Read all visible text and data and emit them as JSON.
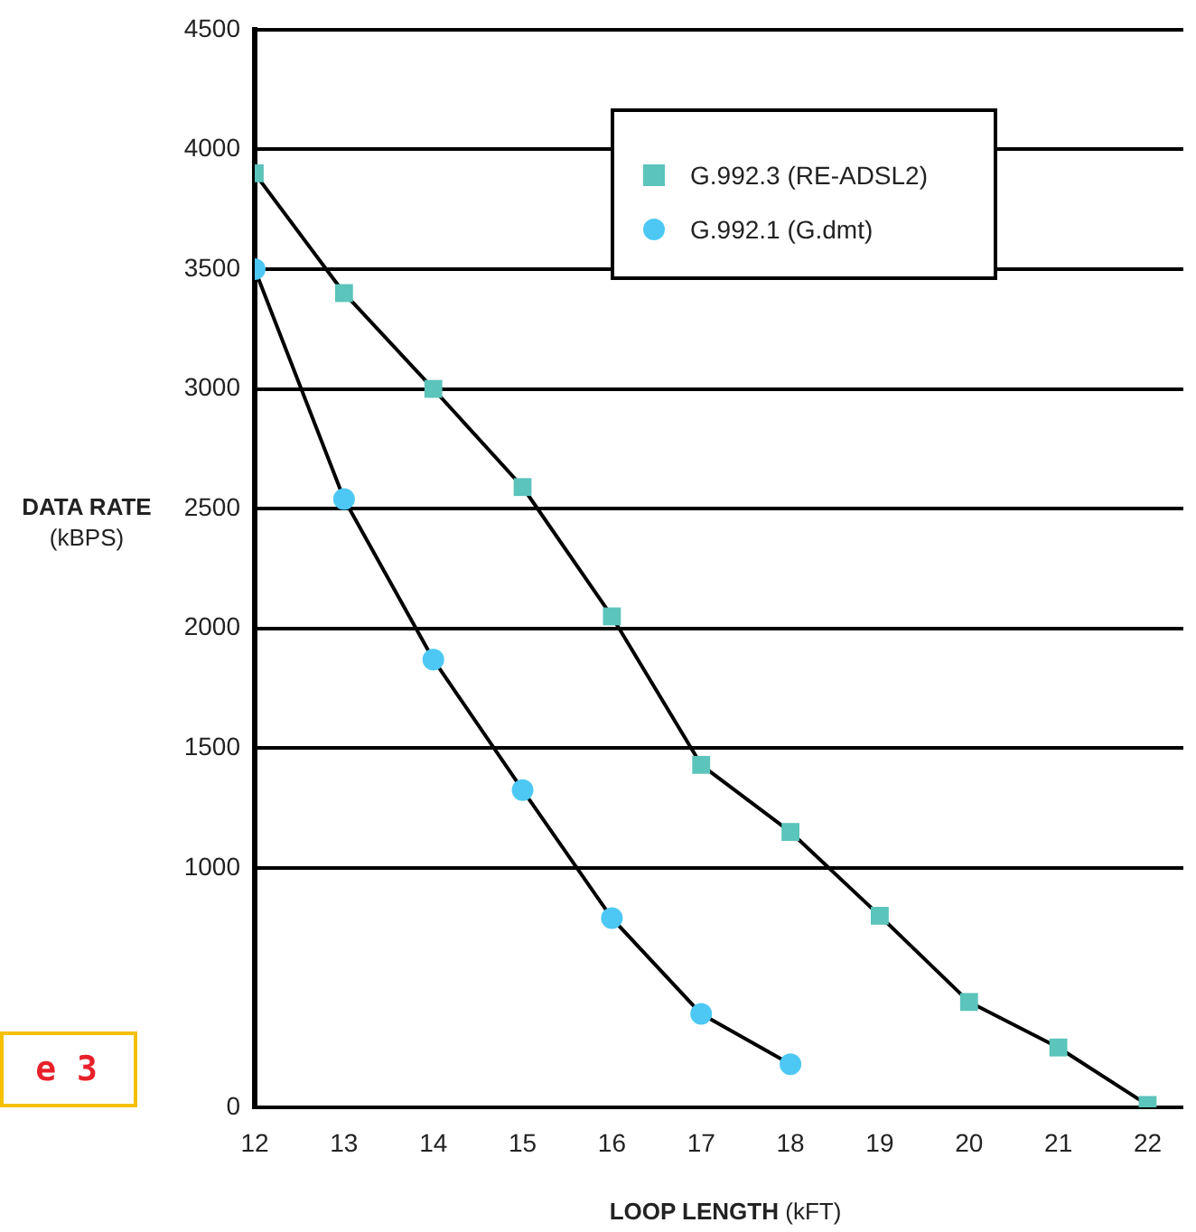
{
  "chart_data": {
    "type": "line",
    "xlabel": "LOOP LENGTH (kFT)",
    "ylabel": "DATA RATE (kBPS)",
    "x": [
      12,
      13,
      14,
      15,
      16,
      17,
      18,
      19,
      20,
      21,
      22
    ],
    "series": [
      {
        "name": "G.992.3 (RE-ADSL2)",
        "color": "#5bc4bb",
        "marker": "square",
        "values": [
          3900,
          3400,
          3000,
          2590,
          2050,
          1430,
          1150,
          800,
          440,
          250,
          10
        ]
      },
      {
        "name": "G.992.1 (G.dmt)",
        "color": "#4dc8f4",
        "marker": "circle",
        "values": [
          3500,
          2540,
          1870,
          1325,
          790,
          390,
          180,
          null,
          null,
          null,
          null
        ]
      }
    ],
    "xlim": [
      12,
      22.4
    ],
    "xticks": [
      12,
      13,
      14,
      15,
      16,
      17,
      18,
      19,
      20,
      21,
      22
    ],
    "ylim": [
      0,
      4500
    ],
    "yticks": [
      0,
      1000,
      1500,
      2000,
      2500,
      3000,
      3500,
      4000,
      4500
    ],
    "grid": "y",
    "legend": "top right",
    "line_style": "solid",
    "annotations": [
      "e 3"
    ]
  }
}
